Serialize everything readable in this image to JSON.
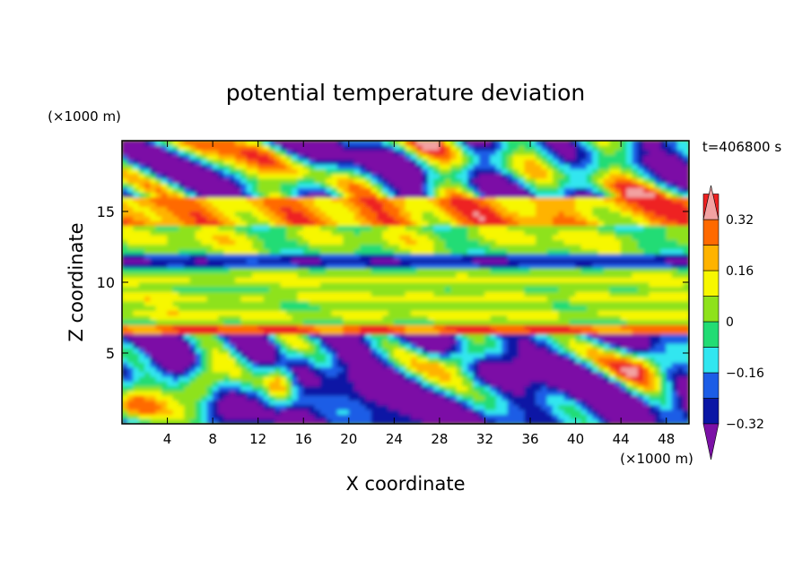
{
  "chart_data": {
    "type": "heatmap",
    "title": "potential temperature deviation",
    "xlabel": "X coordinate",
    "ylabel": "Z coordinate",
    "x_unit": "(×1000 m)",
    "y_unit": "(×1000 m)",
    "time_label": "t=406800 s",
    "xlim": [
      0,
      50
    ],
    "ylim": [
      0,
      20
    ],
    "x_ticks": [
      4,
      8,
      12,
      16,
      20,
      24,
      28,
      32,
      36,
      40,
      44,
      48
    ],
    "y_ticks": [
      5,
      10,
      15
    ],
    "colorbar": {
      "levels": [
        -0.4,
        -0.32,
        -0.24,
        -0.16,
        -0.08,
        0,
        0.08,
        0.16,
        0.24,
        0.32,
        0.4
      ],
      "colors": [
        "#7b11a6",
        "#0a17a5",
        "#1c5de6",
        "#31e6f0",
        "#22dc74",
        "#8ee21c",
        "#f7f700",
        "#ffb300",
        "#ff6a00",
        "#ee2020",
        "#f2a2a2"
      ],
      "labels": [
        "-0.32",
        "-0.16",
        "0",
        "0.16",
        "0.32"
      ],
      "label_values": [
        -0.32,
        -0.16,
        0,
        0.16,
        0.32
      ],
      "extend": "both"
    },
    "field_summary": [
      {
        "z_range": [
          0,
          6
        ],
        "description": "mostly negative (purple) with pink positive plumes"
      },
      {
        "z_range": [
          6.3,
          7
        ],
        "description": "strong positive (red) layer"
      },
      {
        "z_range": [
          7,
          11
        ],
        "description": "near zero (green/yellow) stratified layers"
      },
      {
        "z_range": [
          11,
          12
        ],
        "description": "negative (blue) band"
      },
      {
        "z_range": [
          12,
          15
        ],
        "description": "near zero to slightly positive (green/yellow)"
      },
      {
        "z_range": [
          14,
          16
        ],
        "description": "positive (orange/red) band"
      },
      {
        "z_range": [
          16,
          20
        ],
        "description": "mixed negative (purple) and positive (pink) patches"
      }
    ]
  }
}
